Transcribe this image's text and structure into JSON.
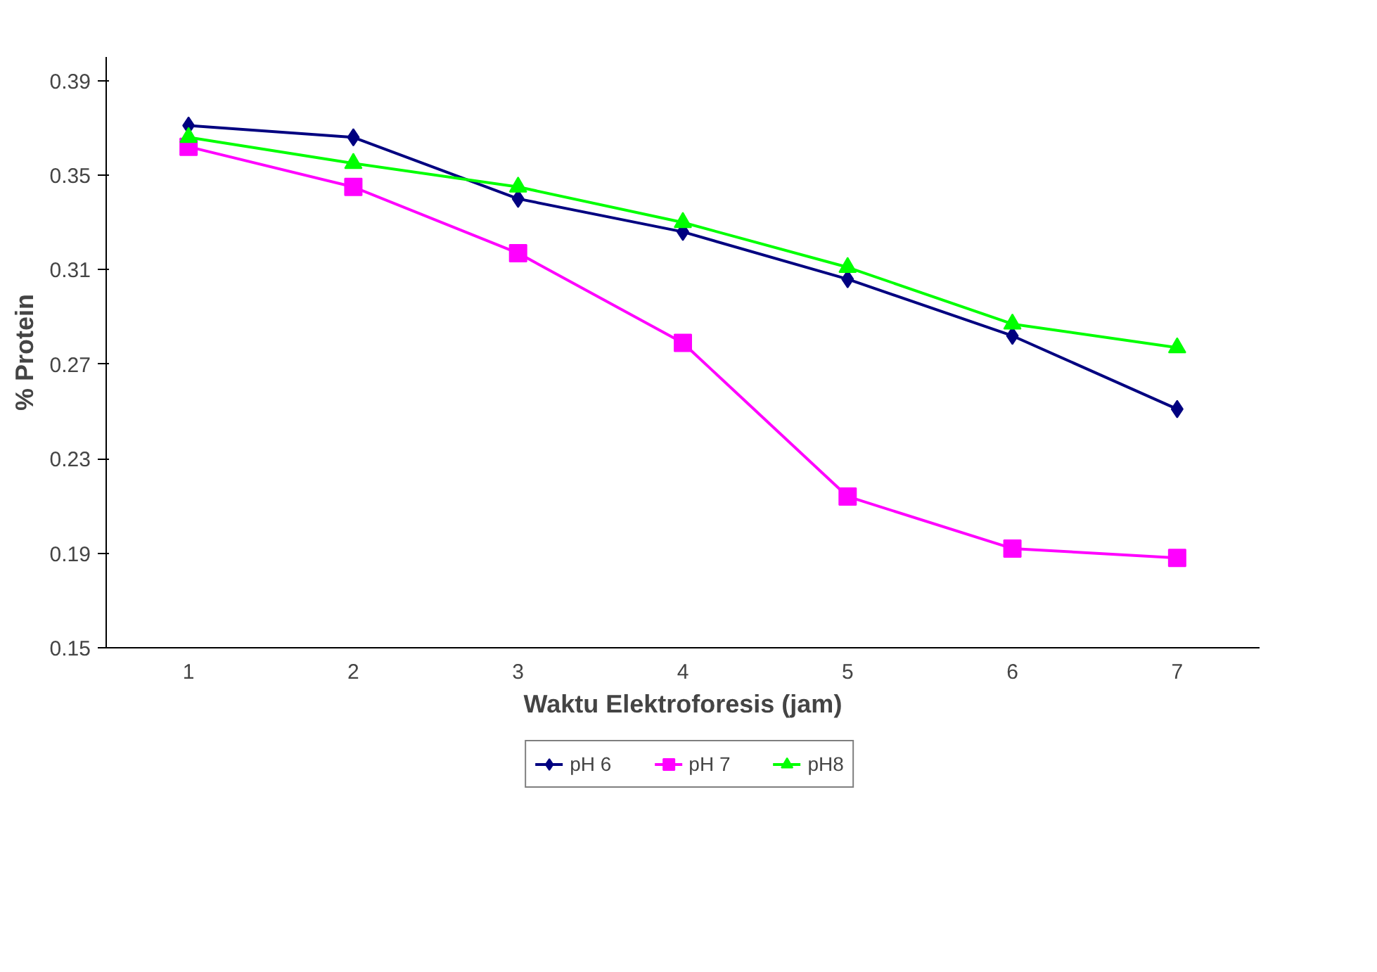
{
  "chart_data": {
    "type": "line",
    "xlabel": "Waktu Elektroforesis (jam)",
    "ylabel": "% Protein",
    "categories": [
      "1",
      "2",
      "3",
      "4",
      "5",
      "6",
      "7"
    ],
    "ylim": [
      0.15,
      0.4
    ],
    "yticks": [
      {
        "value": 0.15,
        "label": "0.15"
      },
      {
        "value": 0.19,
        "label": "0.19"
      },
      {
        "value": 0.23,
        "label": "0.23"
      },
      {
        "value": 0.27,
        "label": "0.27"
      },
      {
        "value": 0.31,
        "label": "0.31"
      },
      {
        "value": 0.35,
        "label": "0.35"
      },
      {
        "value": 0.39,
        "label": "0.39"
      }
    ],
    "grid": false,
    "legend": "bottom",
    "line_style": "solid",
    "series": [
      {
        "name": "pH 6",
        "color": "#000080",
        "marker": "diamond",
        "values": [
          0.371,
          0.366,
          0.34,
          0.326,
          0.306,
          0.282,
          0.251
        ]
      },
      {
        "name": "pH 7",
        "color": "#ff00ff",
        "marker": "square",
        "values": [
          0.362,
          0.345,
          0.317,
          0.279,
          0.214,
          0.192,
          0.188
        ]
      },
      {
        "name": "pH8",
        "color": "#00ff00",
        "marker": "triangle",
        "values": [
          0.366,
          0.355,
          0.345,
          0.33,
          0.311,
          0.287,
          0.277
        ]
      }
    ]
  }
}
